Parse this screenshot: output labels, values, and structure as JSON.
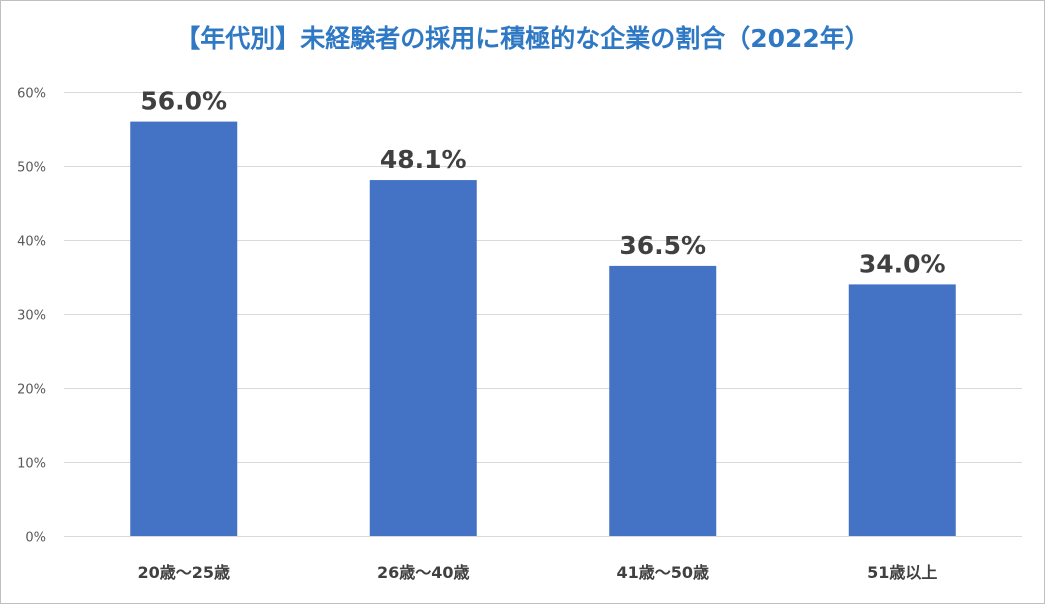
{
  "chart_data": {
    "type": "bar",
    "title": "【年代別】未経験者の採用に積極的な企業の割合（2022年）",
    "xlabel": "",
    "ylabel": "",
    "categories": [
      "20歳〜25歳",
      "26歳〜40歳",
      "41歳〜50歳",
      "51歳以上"
    ],
    "values": [
      56.0,
      48.1,
      36.5,
      34.0
    ],
    "data_labels": [
      "56.0%",
      "48.1%",
      "36.5%",
      "34.0%"
    ],
    "ylim": [
      0,
      60
    ],
    "yticks": [
      0,
      10,
      20,
      30,
      40,
      50,
      60
    ],
    "ytick_labels": [
      "0%",
      "10%",
      "20%",
      "30%",
      "40%",
      "50%",
      "60%"
    ],
    "grid": true,
    "legend": "none",
    "colors": {
      "bar": "#4472c4",
      "title": "#2f78c4",
      "grid": "#d9d9d9",
      "text": "#404040"
    }
  }
}
